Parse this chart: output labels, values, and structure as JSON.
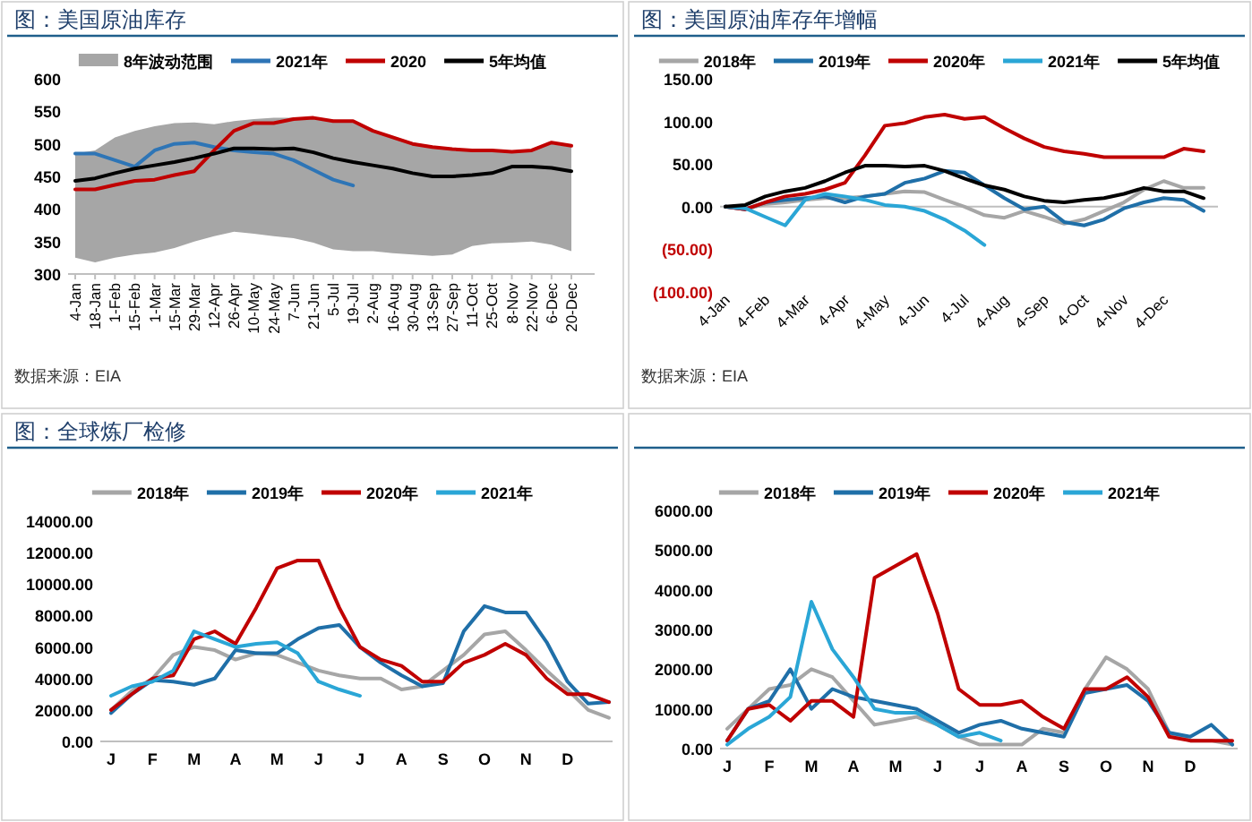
{
  "chart_data": [
    {
      "type": "line",
      "title": "图：美国原油库存",
      "annotations": [
        "数据来源：EIA"
      ],
      "legend": "top",
      "categories": [
        "4-Jan",
        "18-Jan",
        "1-Feb",
        "15-Feb",
        "1-Mar",
        "15-Mar",
        "29-Mar",
        "12-Apr",
        "26-Apr",
        "10-May",
        "24-May",
        "7-Jun",
        "21-Jun",
        "5-Jul",
        "19-Jul",
        "2-Aug",
        "16-Aug",
        "30-Aug",
        "13-Sep",
        "27-Sep",
        "11-Oct",
        "25-Oct",
        "8-Nov",
        "22-Nov",
        "6-Dec",
        "20-Dec"
      ],
      "ylim": [
        300,
        600
      ],
      "yticks": [
        300,
        350,
        400,
        450,
        500,
        550,
        600
      ],
      "series": [
        {
          "name": "8年波动范围",
          "type": "area",
          "color": "#a6a6a6",
          "values": [
            null,
            null,
            null,
            null,
            null,
            null,
            null,
            null,
            null,
            null,
            null,
            null,
            null,
            null,
            null,
            null,
            null,
            null,
            null,
            null,
            null,
            null,
            null,
            null,
            null,
            null
          ],
          "upper": [
            485,
            490,
            510,
            520,
            527,
            532,
            533,
            530,
            535,
            538,
            540,
            540,
            540,
            537,
            535,
            520,
            512,
            502,
            497,
            493,
            490,
            490,
            490,
            490,
            500,
            495
          ],
          "lower": [
            325,
            318,
            325,
            330,
            333,
            340,
            350,
            358,
            365,
            362,
            358,
            355,
            348,
            338,
            335,
            335,
            332,
            330,
            328,
            330,
            343,
            347,
            348,
            350,
            345,
            335
          ]
        },
        {
          "name": "2021年",
          "color": "#2e75b6",
          "values": [
            485,
            485,
            475,
            465,
            490,
            500,
            502,
            495,
            490,
            487,
            485,
            475,
            460,
            445,
            436,
            null,
            null,
            null,
            null,
            null,
            null,
            null,
            null,
            null,
            null,
            null
          ]
        },
        {
          "name": "2020",
          "color": "#c00000",
          "values": [
            430,
            430,
            437,
            443,
            445,
            452,
            458,
            490,
            520,
            532,
            532,
            538,
            540,
            535,
            535,
            520,
            510,
            500,
            495,
            492,
            490,
            490,
            488,
            490,
            502,
            497
          ]
        },
        {
          "name": "5年均值",
          "color": "#000000",
          "values": [
            443,
            447,
            455,
            462,
            467,
            472,
            478,
            485,
            493,
            493,
            492,
            493,
            487,
            478,
            472,
            467,
            462,
            455,
            450,
            450,
            452,
            455,
            465,
            465,
            463,
            458
          ]
        }
      ]
    },
    {
      "type": "line",
      "title": "图：美国原油库存年增幅",
      "annotations": [
        "数据来源：EIA"
      ],
      "legend": "top",
      "categories": [
        "4-Jan",
        null,
        "4-Feb",
        null,
        "4-Mar",
        null,
        "4-Apr",
        null,
        "4-May",
        null,
        "4-Jun",
        null,
        "4-Jul",
        null,
        "4-Aug",
        null,
        "4-Sep",
        null,
        "4-Oct",
        null,
        "4-Nov",
        null,
        "4-Dec",
        null,
        null
      ],
      "ylim": [
        -100,
        150
      ],
      "yticks": [
        {
          "value": -100,
          "label": "(100.00)"
        },
        {
          "value": -50,
          "label": "(50.00)"
        },
        {
          "value": 0,
          "label": "0.00"
        },
        {
          "value": 50,
          "label": "50.00"
        },
        {
          "value": 100,
          "label": "100.00"
        },
        {
          "value": 150,
          "label": "150.00"
        }
      ],
      "series": [
        {
          "name": "2018年",
          "color": "#a6a6a6",
          "values": [
            0,
            -3,
            3,
            5,
            8,
            10,
            10,
            12,
            15,
            18,
            17,
            8,
            0,
            -10,
            -13,
            -5,
            -12,
            -20,
            -15,
            -5,
            5,
            20,
            30,
            22,
            22
          ]
        },
        {
          "name": "2019年",
          "color": "#1f6fa8",
          "values": [
            0,
            -3,
            5,
            8,
            10,
            12,
            5,
            12,
            15,
            28,
            33,
            42,
            40,
            25,
            10,
            -3,
            0,
            -18,
            -22,
            -15,
            -2,
            5,
            10,
            8,
            -5
          ]
        },
        {
          "name": "2020年",
          "color": "#c00000",
          "values": [
            0,
            -3,
            5,
            12,
            15,
            20,
            28,
            60,
            95,
            98,
            105,
            108,
            103,
            105,
            92,
            80,
            70,
            65,
            62,
            58,
            58,
            58,
            58,
            68,
            65
          ]
        },
        {
          "name": "2021年",
          "color": "#2aa6d6",
          "values": [
            0,
            -2,
            -12,
            -22,
            8,
            15,
            12,
            8,
            2,
            0,
            -5,
            -15,
            -28,
            -45,
            null,
            null,
            null,
            null,
            null,
            null,
            null,
            null,
            null,
            null,
            null
          ]
        },
        {
          "name": "5年均值",
          "color": "#000000",
          "values": [
            0,
            2,
            12,
            18,
            22,
            30,
            40,
            48,
            48,
            47,
            48,
            42,
            33,
            25,
            20,
            12,
            7,
            5,
            8,
            10,
            15,
            22,
            18,
            18,
            10
          ]
        }
      ]
    },
    {
      "type": "line",
      "title": "图：全球炼厂检修",
      "legend": "top",
      "categories": [
        "J",
        null,
        "F",
        null,
        "M",
        null,
        "A",
        null,
        "M",
        null,
        "J",
        null,
        "J",
        null,
        "A",
        null,
        "S",
        null,
        "O",
        null,
        "N",
        null,
        "D",
        null,
        null
      ],
      "ylim": [
        0,
        14000
      ],
      "yticks": [
        {
          "value": 0,
          "label": "0.00"
        },
        {
          "value": 2000,
          "label": "2000.00"
        },
        {
          "value": 4000,
          "label": "4000.00"
        },
        {
          "value": 6000,
          "label": "6000.00"
        },
        {
          "value": 8000,
          "label": "8000.00"
        },
        {
          "value": 10000,
          "label": "10000.00"
        },
        {
          "value": 12000,
          "label": "12000.00"
        },
        {
          "value": 14000,
          "label": "14000.00"
        }
      ],
      "series": [
        {
          "name": "2018年",
          "color": "#a6a6a6",
          "values": [
            2000,
            3200,
            4000,
            5500,
            6000,
            5800,
            5200,
            5600,
            5500,
            5000,
            4500,
            4200,
            4000,
            4000,
            3300,
            3500,
            4500,
            5500,
            6800,
            7000,
            5800,
            4500,
            3300,
            2000,
            1500
          ]
        },
        {
          "name": "2019年",
          "color": "#1f6fa8",
          "values": [
            1800,
            3000,
            3900,
            3800,
            3600,
            4000,
            5800,
            5600,
            5600,
            6500,
            7200,
            7400,
            6000,
            5000,
            4200,
            3500,
            3700,
            7000,
            8600,
            8200,
            8200,
            6300,
            3800,
            2400,
            2500
          ]
        },
        {
          "name": "2020年",
          "color": "#c00000",
          "values": [
            2000,
            3000,
            4000,
            4200,
            6500,
            7000,
            6200,
            8500,
            11000,
            11500,
            11500,
            8500,
            6000,
            5200,
            4800,
            3800,
            3800,
            5000,
            5500,
            6200,
            5500,
            4000,
            3000,
            3000,
            2500
          ]
        },
        {
          "name": "2021年",
          "color": "#2aa6d6",
          "values": [
            2900,
            3500,
            3800,
            4500,
            7000,
            6500,
            6000,
            6200,
            6300,
            5600,
            3800,
            3300,
            2900,
            null,
            null,
            null,
            null,
            null,
            null,
            null,
            null,
            null,
            null,
            null,
            null
          ]
        }
      ]
    },
    {
      "type": "line",
      "legend": "top",
      "categories": [
        "J",
        null,
        "F",
        null,
        "M",
        null,
        "A",
        null,
        "M",
        null,
        "J",
        null,
        "J",
        null,
        "A",
        null,
        "S",
        null,
        "O",
        null,
        "N",
        null,
        "D",
        null,
        null
      ],
      "ylim": [
        0,
        6000
      ],
      "yticks": [
        {
          "value": 0,
          "label": "0.00"
        },
        {
          "value": 1000,
          "label": "1000.00"
        },
        {
          "value": 2000,
          "label": "2000.00"
        },
        {
          "value": 3000,
          "label": "3000.00"
        },
        {
          "value": 4000,
          "label": "4000.00"
        },
        {
          "value": 5000,
          "label": "5000.00"
        },
        {
          "value": 6000,
          "label": "6000.00"
        }
      ],
      "series": [
        {
          "name": "2018年",
          "color": "#a6a6a6",
          "values": [
            500,
            1000,
            1500,
            1600,
            2000,
            1800,
            1200,
            600,
            700,
            800,
            600,
            300,
            100,
            100,
            100,
            500,
            400,
            1500,
            2300,
            2000,
            1500,
            400,
            200,
            200,
            100
          ]
        },
        {
          "name": "2019年",
          "color": "#1f6fa8",
          "values": [
            200,
            1000,
            1200,
            2000,
            1000,
            1500,
            1300,
            1200,
            1100,
            1000,
            700,
            400,
            600,
            700,
            500,
            400,
            300,
            1400,
            1500,
            1600,
            1200,
            400,
            300,
            600,
            100
          ]
        },
        {
          "name": "2020年",
          "color": "#c00000",
          "values": [
            200,
            1000,
            1100,
            700,
            1200,
            1200,
            800,
            4300,
            4600,
            4900,
            3400,
            1500,
            1100,
            1100,
            1200,
            800,
            500,
            1500,
            1500,
            1800,
            1300,
            300,
            200,
            200,
            200
          ]
        },
        {
          "name": "2021年",
          "color": "#2aa6d6",
          "values": [
            100,
            500,
            800,
            1300,
            3700,
            2500,
            1800,
            1000,
            900,
            900,
            600,
            300,
            400,
            200,
            null,
            null,
            null,
            null,
            null,
            null,
            null,
            null,
            null,
            null,
            null
          ]
        }
      ]
    }
  ]
}
